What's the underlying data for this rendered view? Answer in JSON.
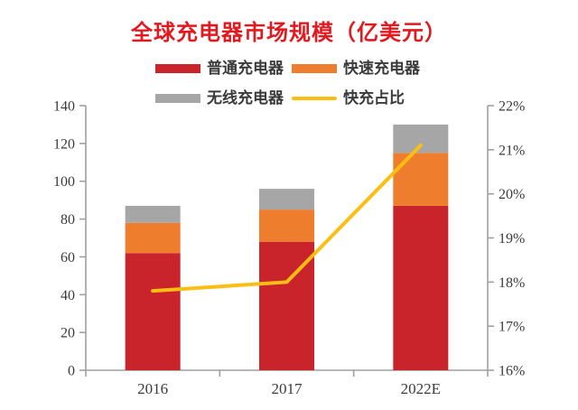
{
  "style": {
    "title_color": "#e2191f",
    "axis_color": "#a0a0a0",
    "text_color": "#3b3b3b",
    "background": "#ffffff"
  },
  "chart_data": {
    "type": "bar",
    "subtype": "stacked-bars-with-line-overlay",
    "title": "全球充电器市场规模（亿美元）",
    "categories": [
      "2016",
      "2017",
      "2022E"
    ],
    "series": [
      {
        "name": "普通充电器",
        "color": "#c9242c",
        "values": [
          62,
          68,
          87
        ]
      },
      {
        "name": "快速充电器",
        "color": "#ee7e2d",
        "values": [
          16,
          17,
          28
        ]
      },
      {
        "name": "无线充电器",
        "color": "#a6a6a6",
        "values": [
          9,
          11,
          15
        ]
      }
    ],
    "bar_totals": [
      87,
      96,
      130
    ],
    "line_series": {
      "name": "快充占比",
      "color": "#fdbe14",
      "axis": "right",
      "values_pct": [
        17.8,
        18.0,
        21.1
      ]
    },
    "left_axis": {
      "range": [
        0,
        140
      ],
      "ticks": [
        0,
        20,
        40,
        60,
        80,
        100,
        120,
        140
      ]
    },
    "right_axis": {
      "range_pct": [
        16,
        22
      ],
      "ticks": [
        "16%",
        "17%",
        "18%",
        "19%",
        "20%",
        "21%",
        "22%"
      ]
    },
    "grid": false,
    "legend_position": "top"
  }
}
